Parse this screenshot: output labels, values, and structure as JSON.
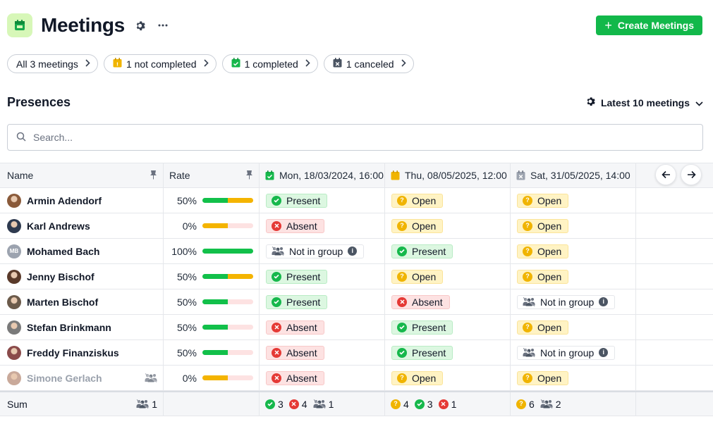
{
  "header": {
    "title": "Meetings",
    "create_label": "Create Meetings"
  },
  "filters": [
    {
      "label": "All 3 meetings",
      "icon": "none"
    },
    {
      "label": "1 not completed",
      "icon": "calendar-yellow"
    },
    {
      "label": "1 completed",
      "icon": "calendar-green"
    },
    {
      "label": "1 canceled",
      "icon": "calendar-gray"
    }
  ],
  "section": {
    "title": "Presences",
    "latest_label": "Latest 10 meetings"
  },
  "search": {
    "placeholder": "Search...",
    "value": ""
  },
  "table": {
    "col_name": "Name",
    "col_rate": "Rate",
    "meetings": [
      {
        "label": "Mon, 18/03/2024, 16:00",
        "icon": "calendar-check-green"
      },
      {
        "label": "Thu, 08/05/2025, 12:00",
        "icon": "calendar-yellow"
      },
      {
        "label": "Sat, 31/05/2025, 14:00",
        "icon": "calendar-x-gray"
      }
    ],
    "status_labels": {
      "present": "Present",
      "absent": "Absent",
      "open": "Open",
      "nig": "Not in group"
    },
    "rows": [
      {
        "name": "Armin Adendorf",
        "rate": "50%",
        "present": 0.5,
        "open": 0.5,
        "avatar": "photo",
        "avatar_color": "#8a5a3a",
        "muted": false,
        "statuses": [
          "present",
          "open",
          "open"
        ]
      },
      {
        "name": "Karl Andrews",
        "rate": "0%",
        "present": 0,
        "open": 0.5,
        "avatar": "photo",
        "avatar_color": "#2e3a4f",
        "muted": false,
        "statuses": [
          "absent",
          "open",
          "open"
        ]
      },
      {
        "name": "Mohamed Bach",
        "rate": "100%",
        "present": 1.0,
        "open": 0,
        "avatar": "MB",
        "avatar_color": "#9ca3af",
        "muted": false,
        "statuses": [
          "nig",
          "present",
          "open"
        ]
      },
      {
        "name": "Jenny Bischof",
        "rate": "50%",
        "present": 0.5,
        "open": 0.5,
        "avatar": "photo",
        "avatar_color": "#5a3a2a",
        "muted": false,
        "statuses": [
          "present",
          "open",
          "open"
        ]
      },
      {
        "name": "Marten Bischof",
        "rate": "50%",
        "present": 0.5,
        "open": 0,
        "avatar": "photo",
        "avatar_color": "#6b5a4a",
        "muted": false,
        "statuses": [
          "present",
          "absent",
          "nig"
        ]
      },
      {
        "name": "Stefan Brinkmann",
        "rate": "50%",
        "present": 0.5,
        "open": 0,
        "avatar": "photo",
        "avatar_color": "#7a7a7a",
        "muted": false,
        "statuses": [
          "absent",
          "present",
          "open"
        ]
      },
      {
        "name": "Freddy Finanziskus",
        "rate": "50%",
        "present": 0.5,
        "open": 0,
        "avatar": "photo",
        "avatar_color": "#8a4a4a",
        "muted": false,
        "statuses": [
          "absent",
          "present",
          "nig"
        ]
      },
      {
        "name": "Simone Gerlach",
        "rate": "0%",
        "present": 0,
        "open": 0.5,
        "avatar": "photo",
        "avatar_color": "#c9a99a",
        "muted": true,
        "statuses": [
          "absent",
          "open",
          "open"
        ]
      }
    ],
    "sum": {
      "label": "Sum",
      "name_count": "1",
      "meetings": [
        [
          {
            "type": "present",
            "count": "3"
          },
          {
            "type": "absent",
            "count": "4"
          },
          {
            "type": "nig",
            "count": "1"
          }
        ],
        [
          {
            "type": "open",
            "count": "4"
          },
          {
            "type": "present",
            "count": "3"
          },
          {
            "type": "absent",
            "count": "1"
          }
        ],
        [
          {
            "type": "open",
            "count": "6"
          },
          {
            "type": "nig",
            "count": "2"
          }
        ]
      ]
    }
  },
  "colors": {
    "accent": "#12b84a",
    "present": "#16b84c",
    "absent": "#e53935",
    "open": "#f0b400"
  }
}
